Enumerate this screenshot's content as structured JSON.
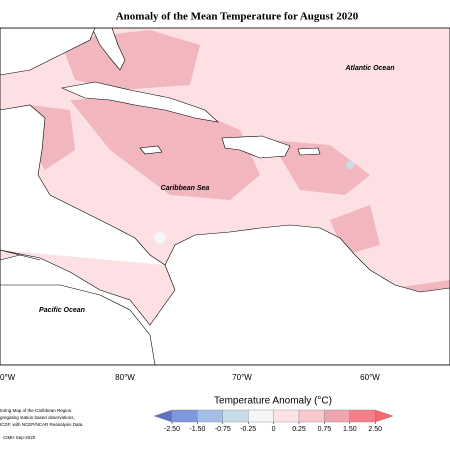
{
  "title": "Anomaly of the Mean Temperature for August 2020",
  "map_labels": [
    "Atlantic Ocean",
    "Caribbean Sea",
    "Pacific Ocean"
  ],
  "longitude_labels": [
    "0°W",
    "80°W",
    "70°W",
    "60°W"
  ],
  "colorbar": {
    "title": "Temperature Anomaly (°C)",
    "ticks": [
      {
        "value": -2.5,
        "label": "-2.50"
      },
      {
        "value": -1.5,
        "label": "-1.50"
      },
      {
        "value": -0.75,
        "label": "-0.75"
      },
      {
        "value": -0.25,
        "label": "-0.25"
      },
      0,
      {
        "value": 0.25,
        "label": "0.25"
      },
      {
        "value": 0.75,
        "label": "0.75"
      },
      {
        "value": 1.5,
        "label": "1.50"
      },
      {
        "value": 2.5,
        "label": "2.50"
      }
    ],
    "colors": [
      "#5b74bd",
      "#7f98dc",
      "#a3bde9",
      "#c9dcea",
      "#f4f6f8",
      "#fde3e6",
      "#f7c9ce",
      "#eea5ad",
      "#f47f8a",
      "#f2676f"
    ]
  },
  "footnote": [
    "toring Map of the Caribbean Region.",
    "gregating station based observations,",
    "ICDF, with NCEP/NCAR Reanalysis Data.",
    "CIMH Sep-2020"
  ]
}
